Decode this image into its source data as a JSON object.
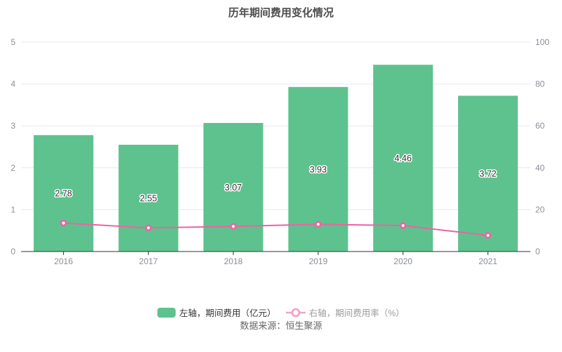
{
  "title": "历年期间费用变化情况",
  "source": "数据来源：恒生聚源",
  "legend": [
    {
      "label": "左轴，期间费用（亿元）",
      "type": "bar",
      "color": "#5EC28E",
      "icon_color": "#5EC28E"
    },
    {
      "label": "右轴，期间费用率（%）",
      "type": "line",
      "color": "#ED62A5",
      "icon_color": "#F3A3C8"
    }
  ],
  "chart_data": {
    "type": "bar+line",
    "title": "历年期间费用变化情况",
    "categories": [
      "2016",
      "2017",
      "2018",
      "2019",
      "2020",
      "2021"
    ],
    "series": [
      {
        "name": "左轴，期间费用（亿元）",
        "type": "bar",
        "axis": "left",
        "unit": "亿元",
        "values": [
          2.78,
          2.55,
          3.07,
          3.93,
          4.46,
          3.72
        ],
        "labels": [
          "2.78",
          "2.55",
          "3.07",
          "3.93",
          "4.46",
          "3.72"
        ],
        "color": "#5EC28E"
      },
      {
        "name": "右轴，期间费用率（%）",
        "type": "line",
        "axis": "right",
        "unit": "%",
        "values": [
          13.6,
          11.3,
          12.0,
          13.0,
          12.4,
          7.7
        ],
        "color": "#ED62A5"
      }
    ],
    "left_axis": {
      "min": 0,
      "max": 5,
      "ticks": [
        0,
        1,
        2,
        3,
        4,
        5
      ]
    },
    "right_axis": {
      "min": 0,
      "max": 100,
      "ticks": [
        0,
        20,
        40,
        60,
        80,
        100
      ]
    },
    "grid": true,
    "legend_position": "bottom",
    "colors": {
      "grid_line": "#E4EAF4",
      "axis_line": "#333333",
      "tick_label": "#8A8F98",
      "bar_value_label": "#333333",
      "title": "#4D4D4D",
      "source_text": "#666666"
    }
  }
}
